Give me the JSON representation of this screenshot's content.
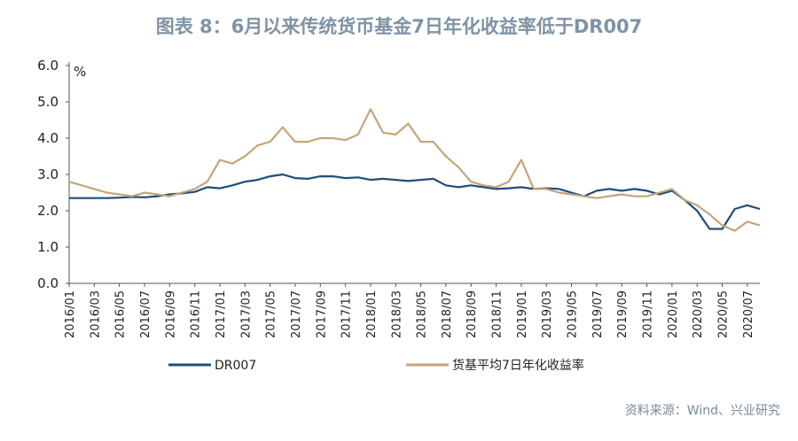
{
  "chart_data": {
    "type": "line",
    "title": "图表 8：6月以来传统货币基金7日年化收益率低于DR007",
    "unit": "%",
    "source": "资料来源：Wind、兴业研究",
    "ylim": [
      0,
      6
    ],
    "yticks": [
      "6.0",
      "5.0",
      "4.0",
      "3.0",
      "2.0",
      "1.0",
      "0.0"
    ],
    "xlim": [
      "2016-01",
      "2020-08"
    ],
    "xticks": [
      "2016/01",
      "2016/03",
      "2016/05",
      "2016/07",
      "2016/09",
      "2016/11",
      "2017/01",
      "2017/03",
      "2017/05",
      "2017/07",
      "2017/09",
      "2017/11",
      "2018/01",
      "2018/03",
      "2018/05",
      "2018/07",
      "2018/09",
      "2018/11",
      "2019/01",
      "2019/03",
      "2019/05",
      "2019/07",
      "2019/09",
      "2019/11",
      "2020/01",
      "2020/03",
      "2020/05",
      "2020/07"
    ],
    "legend_position": "bottom",
    "series": [
      {
        "name": "DR007",
        "color": "#1f4e79",
        "points": [
          [
            "2016-01",
            2.35
          ],
          [
            "2016-02",
            2.35
          ],
          [
            "2016-03",
            2.35
          ],
          [
            "2016-04",
            2.35
          ],
          [
            "2016-05",
            2.36
          ],
          [
            "2016-06",
            2.38
          ],
          [
            "2016-07",
            2.37
          ],
          [
            "2016-08",
            2.4
          ],
          [
            "2016-09",
            2.45
          ],
          [
            "2016-10",
            2.48
          ],
          [
            "2016-11",
            2.52
          ],
          [
            "2016-12",
            2.65
          ],
          [
            "2017-01",
            2.62
          ],
          [
            "2017-02",
            2.7
          ],
          [
            "2017-03",
            2.8
          ],
          [
            "2017-04",
            2.85
          ],
          [
            "2017-05",
            2.95
          ],
          [
            "2017-06",
            3.0
          ],
          [
            "2017-07",
            2.9
          ],
          [
            "2017-08",
            2.88
          ],
          [
            "2017-09",
            2.95
          ],
          [
            "2017-10",
            2.95
          ],
          [
            "2017-11",
            2.9
          ],
          [
            "2017-12",
            2.92
          ],
          [
            "2018-01",
            2.85
          ],
          [
            "2018-02",
            2.88
          ],
          [
            "2018-03",
            2.85
          ],
          [
            "2018-04",
            2.82
          ],
          [
            "2018-05",
            2.85
          ],
          [
            "2018-06",
            2.88
          ],
          [
            "2018-07",
            2.7
          ],
          [
            "2018-08",
            2.65
          ],
          [
            "2018-09",
            2.7
          ],
          [
            "2018-10",
            2.65
          ],
          [
            "2018-11",
            2.6
          ],
          [
            "2018-12",
            2.62
          ],
          [
            "2019-01",
            2.65
          ],
          [
            "2019-02",
            2.6
          ],
          [
            "2019-03",
            2.62
          ],
          [
            "2019-04",
            2.6
          ],
          [
            "2019-05",
            2.5
          ],
          [
            "2019-06",
            2.4
          ],
          [
            "2019-07",
            2.55
          ],
          [
            "2019-08",
            2.6
          ],
          [
            "2019-09",
            2.55
          ],
          [
            "2019-10",
            2.6
          ],
          [
            "2019-11",
            2.55
          ],
          [
            "2019-12",
            2.45
          ],
          [
            "2020-01",
            2.55
          ],
          [
            "2020-02",
            2.3
          ],
          [
            "2020-03",
            2.0
          ],
          [
            "2020-04",
            1.5
          ],
          [
            "2020-05",
            1.5
          ],
          [
            "2020-06",
            2.05
          ],
          [
            "2020-07",
            2.15
          ],
          [
            "2020-08",
            2.05
          ]
        ]
      },
      {
        "name": "货基平均7日年化收益率",
        "color": "#c4a57a",
        "points": [
          [
            "2016-01",
            2.8
          ],
          [
            "2016-02",
            2.7
          ],
          [
            "2016-03",
            2.6
          ],
          [
            "2016-04",
            2.5
          ],
          [
            "2016-05",
            2.45
          ],
          [
            "2016-06",
            2.4
          ],
          [
            "2016-07",
            2.5
          ],
          [
            "2016-08",
            2.45
          ],
          [
            "2016-09",
            2.4
          ],
          [
            "2016-10",
            2.5
          ],
          [
            "2016-11",
            2.6
          ],
          [
            "2016-12",
            2.8
          ],
          [
            "2017-01",
            3.4
          ],
          [
            "2017-02",
            3.3
          ],
          [
            "2017-03",
            3.5
          ],
          [
            "2017-04",
            3.8
          ],
          [
            "2017-05",
            3.9
          ],
          [
            "2017-06",
            4.3
          ],
          [
            "2017-07",
            3.9
          ],
          [
            "2017-08",
            3.9
          ],
          [
            "2017-09",
            4.0
          ],
          [
            "2017-10",
            4.0
          ],
          [
            "2017-11",
            3.95
          ],
          [
            "2017-12",
            4.1
          ],
          [
            "2018-01",
            4.8
          ],
          [
            "2018-02",
            4.15
          ],
          [
            "2018-03",
            4.1
          ],
          [
            "2018-04",
            4.4
          ],
          [
            "2018-05",
            3.9
          ],
          [
            "2018-06",
            3.9
          ],
          [
            "2018-07",
            3.5
          ],
          [
            "2018-08",
            3.2
          ],
          [
            "2018-09",
            2.8
          ],
          [
            "2018-10",
            2.7
          ],
          [
            "2018-11",
            2.65
          ],
          [
            "2018-12",
            2.8
          ],
          [
            "2019-01",
            3.4
          ],
          [
            "2019-02",
            2.6
          ],
          [
            "2019-03",
            2.6
          ],
          [
            "2019-04",
            2.5
          ],
          [
            "2019-05",
            2.45
          ],
          [
            "2019-06",
            2.4
          ],
          [
            "2019-07",
            2.35
          ],
          [
            "2019-08",
            2.4
          ],
          [
            "2019-09",
            2.45
          ],
          [
            "2019-10",
            2.4
          ],
          [
            "2019-11",
            2.4
          ],
          [
            "2019-12",
            2.5
          ],
          [
            "2020-01",
            2.6
          ],
          [
            "2020-02",
            2.3
          ],
          [
            "2020-03",
            2.15
          ],
          [
            "2020-04",
            1.9
          ],
          [
            "2020-05",
            1.6
          ],
          [
            "2020-06",
            1.45
          ],
          [
            "2020-07",
            1.7
          ],
          [
            "2020-08",
            1.6
          ]
        ]
      }
    ]
  }
}
